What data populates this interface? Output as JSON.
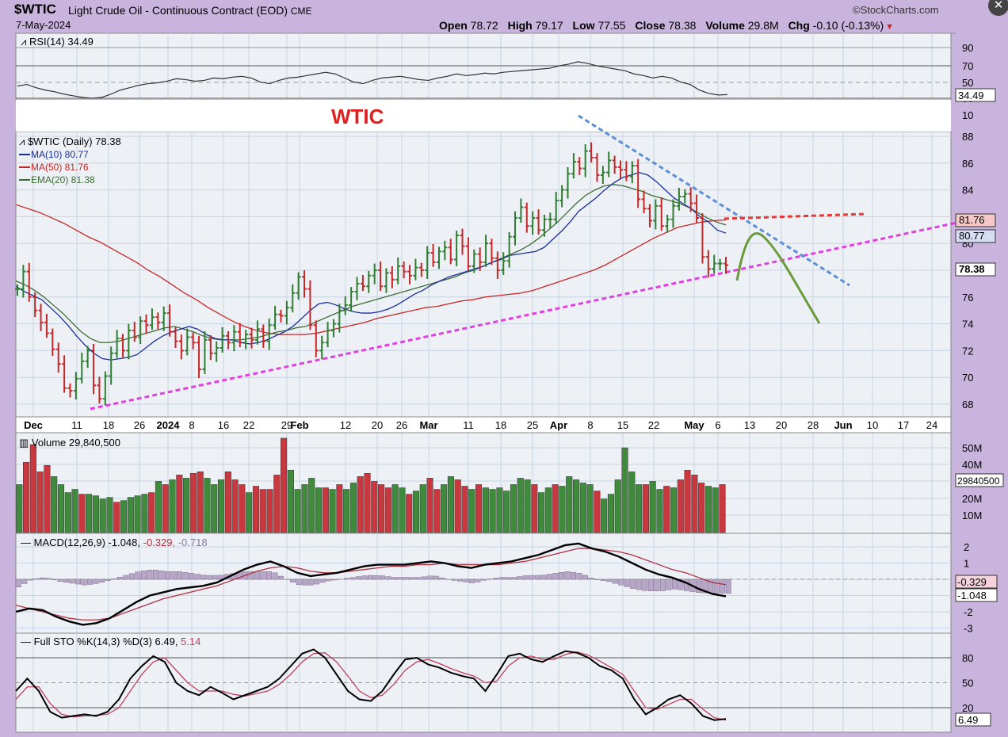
{
  "header": {
    "symbol": "$WTIC",
    "title": "Light Crude Oil - Continuous Contract (EOD)",
    "exchange": "CME",
    "source": "©StockCharts.com",
    "date": "7-May-2024",
    "open_label": "Open",
    "open": "78.72",
    "high_label": "High",
    "high": "79.17",
    "low_label": "Low",
    "low": "77.55",
    "close_label": "Close",
    "close": "78.38",
    "volume_label": "Volume",
    "volume": "29.8M",
    "chg_label": "Chg",
    "chg": "-0.10 (-0.13%)",
    "chg_arrow": "▼",
    "close_icon": "close-icon"
  },
  "colors": {
    "up": "#2e7d32",
    "down": "#c62828",
    "ma10": "#1a2f9c",
    "ma50": "#c62828",
    "ema20": "#3d6b34",
    "trend_pink": "#e040e0",
    "trend_blue": "#5b8fd6",
    "resistance_red": "#e53935",
    "projection_green": "#6a9a3a",
    "annotation_red": "#e02020",
    "macd_signal": "#b03040",
    "hist": "#b8a6c8",
    "sto_d": "#c0405a"
  },
  "chart_data": {
    "type": "stock_chart",
    "annotation": "WTIC",
    "price_panel": {
      "legend": [
        "$WTIC (Daily) 78.38",
        "MA(10) 80.77",
        "MA(50) 81.76",
        "EMA(20) 81.38"
      ],
      "y_ticks": [
        68,
        70,
        72,
        74,
        76,
        78,
        80,
        82,
        84,
        86,
        88
      ],
      "ylim": [
        67.2,
        89.6
      ],
      "x_labels": [
        "Dec",
        "11",
        "18",
        "26",
        "2024",
        "8",
        "16",
        "22",
        "29",
        "Feb",
        "12",
        "20",
        "26",
        "Mar",
        "11",
        "18",
        "25",
        "Apr",
        "8",
        "15",
        "22",
        "May",
        "6",
        "13",
        "20",
        "28",
        "Jun",
        "10",
        "17",
        "24"
      ],
      "bold_x_labels": [
        "Dec",
        "2024",
        "Feb",
        "Mar",
        "Apr",
        "May",
        "Jun"
      ],
      "last_tags": [
        "81.76",
        "80.77",
        "78.38"
      ],
      "close": [
        76.6,
        77.9,
        76.0,
        75.0,
        74.1,
        73.3,
        72.1,
        71.0,
        69.2,
        69.0,
        69.9,
        71.2,
        72.0,
        69.4,
        68.4,
        70.1,
        71.8,
        72.9,
        72.0,
        73.5,
        73.0,
        74.2,
        73.9,
        74.5,
        74.1,
        74.8,
        73.4,
        72.7,
        72.0,
        73.0,
        72.6,
        70.6,
        72.8,
        71.8,
        72.2,
        73.1,
        72.6,
        73.4,
        72.6,
        73.2,
        72.8,
        73.6,
        72.7,
        73.9,
        74.7,
        74.6,
        75.2,
        76.3,
        77.5,
        76.6,
        73.9,
        72.0,
        72.6,
        73.5,
        74.0,
        75.0,
        75.4,
        76.4,
        77.0,
        76.8,
        77.6,
        78.0,
        76.8,
        77.8,
        77.3,
        78.3,
        77.9,
        77.6,
        78.2,
        78.0,
        79.3,
        78.6,
        79.4,
        79.7,
        78.8,
        80.6,
        79.8,
        78.3,
        79.2,
        78.6,
        80.0,
        78.9,
        78.0,
        78.7,
        80.5,
        81.9,
        82.7,
        81.3,
        81.9,
        81.0,
        81.8,
        81.8,
        83.2,
        84.0,
        85.2,
        86.1,
        85.6,
        86.9,
        86.4,
        85.1,
        85.3,
        86.2,
        85.7,
        85.5,
        85.0,
        85.8,
        83.3,
        82.6,
        81.7,
        82.8,
        81.3,
        81.8,
        82.8,
        83.5,
        83.7,
        83.0,
        81.9,
        79.0,
        78.1,
        78.5,
        78.5,
        78.38
      ],
      "ma10": [
        76.8,
        76.4,
        76.1,
        75.8,
        75.2,
        74.6,
        73.9,
        73.1,
        72.4,
        71.8,
        71.4,
        71.3,
        71.4,
        71.5,
        71.7,
        72.2,
        72.7,
        73.1,
        73.4,
        73.6,
        73.8,
        73.6,
        73.2,
        72.9,
        72.8,
        72.8,
        72.6,
        72.5,
        72.6,
        72.8,
        73.1,
        73.4,
        73.8,
        74.4,
        75.0,
        75.5,
        75.6,
        75.4,
        75.1,
        74.9,
        74.8,
        74.8,
        74.9,
        75.1,
        75.4,
        75.8,
        76.2,
        76.5,
        76.9,
        77.2,
        77.5,
        77.7,
        77.9,
        78.1,
        78.3,
        78.6,
        78.8,
        79.1,
        79.2,
        79.3,
        79.4,
        79.7,
        80.3,
        80.9,
        81.6,
        82.4,
        82.9,
        83.4,
        84.0,
        84.5,
        84.9,
        85.1,
        85.3,
        85.1,
        84.6,
        84.0,
        83.4,
        83.0,
        82.6,
        82.0,
        81.6,
        81.0,
        80.77
      ],
      "ma50": [
        82.9,
        82.6,
        82.3,
        81.9,
        81.5,
        81.0,
        80.5,
        80.1,
        79.6,
        79.1,
        78.6,
        78.0,
        77.5,
        76.9,
        76.3,
        75.8,
        75.2,
        74.7,
        74.2,
        73.8,
        73.5,
        73.3,
        73.2,
        73.2,
        73.2,
        73.3,
        73.5,
        73.7,
        73.9,
        74.1,
        74.4,
        74.6,
        74.8,
        75.0,
        75.2,
        75.3,
        75.5,
        75.7,
        75.8,
        76.0,
        76.1,
        76.2,
        76.3,
        76.5,
        76.8,
        77.1,
        77.4,
        77.7,
        78.0,
        78.4,
        78.9,
        79.4,
        79.9,
        80.4,
        80.8,
        81.2,
        81.4,
        81.6,
        81.7,
        81.76
      ],
      "ema20": [
        77.2,
        76.9,
        76.5,
        76.0,
        75.4,
        74.8,
        74.1,
        73.4,
        72.9,
        72.6,
        72.6,
        72.7,
        72.9,
        73.1,
        73.3,
        73.5,
        73.7,
        73.8,
        73.6,
        73.4,
        73.1,
        72.9,
        72.8,
        72.8,
        72.8,
        72.9,
        73.0,
        73.2,
        73.4,
        73.5,
        73.7,
        73.8,
        74.1,
        74.4,
        74.7,
        75.0,
        75.3,
        75.5,
        75.7,
        75.9,
        76.1,
        76.3,
        76.5,
        76.7,
        76.9,
        77.1,
        77.3,
        77.5,
        77.8,
        78.0,
        78.3,
        78.6,
        78.9,
        79.2,
        79.5,
        79.9,
        80.4,
        81.0,
        81.6,
        82.3,
        83.0,
        83.6,
        84.0,
        84.3,
        84.4,
        84.3,
        84.1,
        83.9,
        83.6,
        83.4,
        83.2,
        83.0,
        82.7,
        82.3,
        81.9,
        81.6,
        81.38
      ]
    },
    "rsi_panel": {
      "label": "RSI(14) 34.49",
      "y_ticks": [
        90,
        70,
        50,
        30,
        10
      ],
      "last_tag": "34.49",
      "values": [
        45,
        47,
        43,
        40,
        38,
        35,
        33,
        31,
        30,
        31,
        35,
        40,
        43,
        46,
        48,
        49,
        51,
        54,
        53,
        51,
        52,
        55,
        54,
        56,
        57,
        55,
        50,
        48,
        52,
        55,
        56,
        58,
        60,
        62,
        60,
        55,
        50,
        48,
        52,
        55,
        56,
        57,
        55,
        53,
        52,
        55,
        57,
        60,
        58,
        59,
        61,
        60,
        62,
        63,
        64,
        65,
        66,
        67,
        70,
        72,
        75,
        73,
        70,
        68,
        66,
        64,
        60,
        58,
        55,
        57,
        55,
        50,
        47,
        40,
        36,
        34,
        34.49
      ]
    },
    "volume_panel": {
      "label": "Volume 29,840,500",
      "y_ticks": [
        "50M",
        "40M",
        "30M",
        "20M",
        "10M"
      ],
      "last_tag": "29840500",
      "values_m": [
        30,
        44,
        55,
        38,
        42,
        35,
        30,
        25,
        27,
        24,
        24,
        23,
        21,
        22,
        19,
        20,
        22,
        23,
        24,
        25,
        32,
        30,
        33,
        36,
        34,
        37,
        38,
        34,
        30,
        33,
        38,
        33,
        30,
        25,
        29,
        27,
        27,
        36,
        59,
        39,
        27,
        30,
        34,
        28,
        28,
        27,
        30,
        27,
        31,
        35,
        37,
        32,
        30,
        28,
        30,
        28,
        24,
        26,
        30,
        34,
        27,
        30,
        35,
        33,
        29,
        27,
        30,
        28,
        27,
        28,
        26,
        30,
        34,
        33,
        30,
        25,
        28,
        30,
        29,
        35,
        33,
        31,
        30,
        26,
        21,
        24,
        33,
        53,
        38,
        30,
        30,
        32,
        27,
        29,
        28,
        33,
        39,
        36,
        31,
        29,
        28,
        30
      ],
      "up": [
        1,
        0,
        0,
        0,
        0,
        1,
        1,
        1,
        1,
        0,
        1,
        1,
        1,
        1,
        0,
        1,
        1,
        1,
        1,
        0,
        1,
        0,
        1,
        0,
        1,
        0,
        0,
        1,
        1,
        1,
        0,
        0,
        0,
        1,
        0,
        0,
        0,
        0,
        0,
        1,
        1,
        1,
        1,
        1,
        0,
        1,
        0,
        1,
        1,
        0,
        0,
        0,
        0,
        0,
        1,
        1,
        0,
        1,
        1,
        0,
        0,
        1,
        1,
        0,
        0,
        1,
        0,
        1,
        1,
        1,
        1,
        1,
        1,
        1,
        0,
        1,
        1,
        0,
        1,
        1,
        1,
        1,
        1,
        0,
        1,
        1,
        1,
        1,
        1,
        1,
        0,
        1,
        1,
        0,
        1,
        0,
        0,
        0,
        0,
        1,
        1,
        0
      ]
    },
    "macd_panel": {
      "label_prefix": "MACD(12,26,9)",
      "macd": "-1.048",
      "signal": "-0.329",
      "hist": "-0.718",
      "y_ticks": [
        2,
        1,
        0,
        -1,
        -2,
        -3
      ],
      "last_tags": [
        "-0.329",
        "-1.048"
      ],
      "macd_values": [
        -2.0,
        -1.8,
        -1.9,
        -2.3,
        -2.6,
        -2.8,
        -2.7,
        -2.4,
        -1.9,
        -1.4,
        -1.0,
        -0.8,
        -0.6,
        -0.5,
        -0.4,
        -0.2,
        0.2,
        0.6,
        0.9,
        1.1,
        0.8,
        0.4,
        0.2,
        0.3,
        0.4,
        0.6,
        0.8,
        0.9,
        0.9,
        0.9,
        1.0,
        1.1,
        1.0,
        0.8,
        0.7,
        0.9,
        1.0,
        1.1,
        1.3,
        1.5,
        1.8,
        2.1,
        2.2,
        1.9,
        1.7,
        1.4,
        1.0,
        0.6,
        0.3,
        0.1,
        -0.2,
        -0.6,
        -0.9,
        -1.048
      ],
      "signal_values": [
        -1.6,
        -1.8,
        -2.0,
        -2.2,
        -2.4,
        -2.5,
        -2.5,
        -2.4,
        -2.1,
        -1.8,
        -1.5,
        -1.2,
        -1.0,
        -0.8,
        -0.6,
        -0.4,
        -0.1,
        0.2,
        0.5,
        0.7,
        0.8,
        0.7,
        0.5,
        0.4,
        0.4,
        0.5,
        0.6,
        0.7,
        0.8,
        0.8,
        0.9,
        0.9,
        1.0,
        0.9,
        0.9,
        0.9,
        0.9,
        1.0,
        1.1,
        1.3,
        1.5,
        1.7,
        1.9,
        1.9,
        1.8,
        1.7,
        1.5,
        1.2,
        0.9,
        0.6,
        0.4,
        0.1,
        -0.2,
        -0.329
      ]
    },
    "sto_panel": {
      "label_prefix": "Full STO %K(14,3) %D(3)",
      "k": "6.49",
      "d": "5.14",
      "y_ticks": [
        80,
        50,
        20
      ],
      "last_tag": "6.49",
      "k_values": [
        40,
        55,
        40,
        15,
        8,
        10,
        12,
        10,
        15,
        30,
        55,
        70,
        82,
        75,
        50,
        40,
        35,
        45,
        38,
        30,
        35,
        40,
        45,
        55,
        70,
        85,
        90,
        80,
        60,
        40,
        30,
        28,
        40,
        60,
        78,
        80,
        72,
        68,
        62,
        58,
        55,
        40,
        60,
        82,
        85,
        78,
        75,
        82,
        88,
        86,
        80,
        70,
        65,
        55,
        30,
        12,
        20,
        30,
        35,
        25,
        10,
        5,
        6.49
      ],
      "d_values": [
        30,
        45,
        45,
        25,
        12,
        9,
        10,
        11,
        12,
        20,
        40,
        60,
        75,
        80,
        65,
        50,
        40,
        40,
        40,
        36,
        34,
        37,
        40,
        48,
        60,
        75,
        85,
        86,
        75,
        58,
        40,
        32,
        35,
        48,
        65,
        75,
        78,
        73,
        67,
        62,
        58,
        50,
        52,
        70,
        80,
        82,
        78,
        78,
        84,
        87,
        83,
        76,
        68,
        60,
        40,
        20,
        18,
        24,
        30,
        30,
        18,
        8,
        5.14
      ]
    }
  }
}
